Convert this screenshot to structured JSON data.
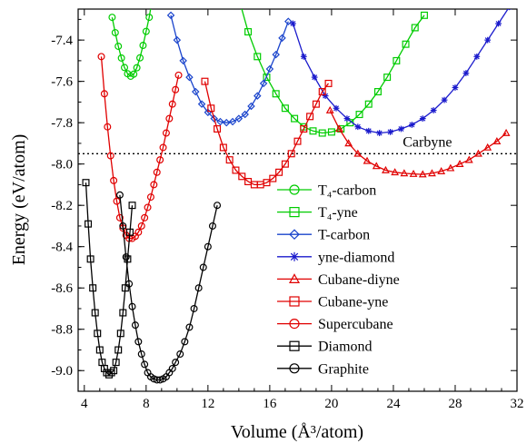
{
  "chart_data": {
    "type": "line",
    "xlabel": "Volume (Å³/atom)",
    "ylabel": "Energy (eV/atom)",
    "xlim": [
      3.6,
      32
    ],
    "ylim": [
      -9.1,
      -7.25
    ],
    "xticks": [
      4,
      8,
      12,
      16,
      20,
      24,
      28,
      32
    ],
    "yticks": [
      -7.4,
      -7.6,
      -7.8,
      -8.0,
      -8.2,
      -8.4,
      -8.6,
      -8.8,
      -9.0
    ],
    "grid": false,
    "legend_position": "bottom-right",
    "reference_line": {
      "label": "Carbyne",
      "y": -7.95,
      "style": "dotted"
    },
    "series": [
      {
        "name": "T₄-carbon",
        "color": "#00cc00",
        "marker": "circle",
        "x": [
          5.8,
          6.0,
          6.2,
          6.4,
          6.6,
          6.8,
          7.0,
          7.2,
          7.4,
          7.6,
          7.8,
          8.0,
          8.2,
          8.4,
          8.6
        ],
        "y": [
          -7.29,
          -7.364,
          -7.43,
          -7.487,
          -7.533,
          -7.563,
          -7.575,
          -7.565,
          -7.534,
          -7.486,
          -7.426,
          -7.358,
          -7.29,
          -7.2,
          -7.1
        ]
      },
      {
        "name": "T₄-yne",
        "color": "#00cc00",
        "marker": "square",
        "x": [
          14.0,
          14.6,
          15.2,
          15.8,
          16.4,
          17.0,
          17.6,
          18.2,
          18.8,
          19.4,
          20.0,
          20.6,
          21.2,
          21.8,
          22.4,
          23.0,
          23.6,
          24.2,
          24.8,
          25.4,
          26.0
        ],
        "y": [
          -7.2,
          -7.36,
          -7.48,
          -7.58,
          -7.66,
          -7.73,
          -7.78,
          -7.82,
          -7.84,
          -7.85,
          -7.845,
          -7.83,
          -7.8,
          -7.76,
          -7.71,
          -7.65,
          -7.58,
          -7.5,
          -7.42,
          -7.34,
          -7.28
        ]
      },
      {
        "name": "T-carbon",
        "color": "#1a44cc",
        "marker": "diamond",
        "x": [
          9.6,
          10.0,
          10.4,
          10.8,
          11.2,
          11.6,
          12.0,
          12.4,
          12.8,
          13.2,
          13.6,
          14.0,
          14.4,
          14.8,
          15.2,
          15.6,
          16.0,
          16.4,
          16.8,
          17.2
        ],
        "y": [
          -7.28,
          -7.4,
          -7.5,
          -7.58,
          -7.65,
          -7.71,
          -7.75,
          -7.78,
          -7.795,
          -7.8,
          -7.795,
          -7.78,
          -7.76,
          -7.72,
          -7.67,
          -7.61,
          -7.54,
          -7.47,
          -7.39,
          -7.31
        ]
      },
      {
        "name": "yne-diamond",
        "color": "#1a1acc",
        "marker": "star",
        "x": [
          17.5,
          18.2,
          18.9,
          19.6,
          20.3,
          21.0,
          21.7,
          22.4,
          23.1,
          23.8,
          24.5,
          25.2,
          25.9,
          26.6,
          27.3,
          28.0,
          28.7,
          29.4,
          30.1,
          30.8,
          31.5
        ],
        "y": [
          -7.32,
          -7.48,
          -7.58,
          -7.67,
          -7.73,
          -7.78,
          -7.82,
          -7.84,
          -7.85,
          -7.845,
          -7.83,
          -7.81,
          -7.78,
          -7.74,
          -7.69,
          -7.63,
          -7.56,
          -7.48,
          -7.4,
          -7.32,
          -7.24
        ]
      },
      {
        "name": "Cubane-diyne",
        "color": "#e00000",
        "marker": "triangle",
        "x": [
          19.9,
          20.5,
          21.1,
          21.7,
          22.3,
          22.9,
          23.5,
          24.1,
          24.7,
          25.3,
          25.9,
          26.5,
          27.1,
          27.7,
          28.3,
          28.9,
          29.5,
          30.1,
          30.7,
          31.3
        ],
        "y": [
          -7.74,
          -7.83,
          -7.9,
          -7.95,
          -7.985,
          -8.01,
          -8.03,
          -8.04,
          -8.045,
          -8.048,
          -8.05,
          -8.045,
          -8.035,
          -8.02,
          -8.0,
          -7.98,
          -7.95,
          -7.92,
          -7.89,
          -7.85
        ]
      },
      {
        "name": "Cubane-yne",
        "color": "#e00000",
        "marker": "square",
        "x": [
          11.8,
          12.2,
          12.6,
          13.0,
          13.4,
          13.8,
          14.2,
          14.6,
          15.0,
          15.4,
          15.8,
          16.2,
          16.6,
          17.0,
          17.4,
          17.8,
          18.2,
          18.6,
          19.0,
          19.4,
          19.8
        ],
        "y": [
          -7.6,
          -7.73,
          -7.83,
          -7.92,
          -7.98,
          -8.03,
          -8.06,
          -8.085,
          -8.1,
          -8.1,
          -8.09,
          -8.07,
          -8.04,
          -8.0,
          -7.95,
          -7.89,
          -7.83,
          -7.77,
          -7.71,
          -7.65,
          -7.61
        ]
      },
      {
        "name": "Supercubane",
        "color": "#e00000",
        "marker": "circle",
        "x": [
          5.1,
          5.3,
          5.5,
          5.7,
          5.9,
          6.1,
          6.3,
          6.5,
          6.7,
          6.9,
          7.1,
          7.3,
          7.5,
          7.7,
          7.9,
          8.1,
          8.3,
          8.5,
          8.7,
          8.9,
          9.1,
          9.3,
          9.5,
          9.7,
          9.9,
          10.1
        ],
        "y": [
          -7.48,
          -7.66,
          -7.82,
          -7.96,
          -8.08,
          -8.18,
          -8.26,
          -8.31,
          -8.345,
          -8.36,
          -8.36,
          -8.35,
          -8.33,
          -8.3,
          -8.26,
          -8.21,
          -8.16,
          -8.1,
          -8.04,
          -7.98,
          -7.92,
          -7.85,
          -7.78,
          -7.71,
          -7.64,
          -7.57
        ]
      },
      {
        "name": "Diamond",
        "color": "#000000",
        "marker": "square",
        "x": [
          4.1,
          4.25,
          4.4,
          4.55,
          4.7,
          4.85,
          5.0,
          5.15,
          5.3,
          5.45,
          5.6,
          5.75,
          5.9,
          6.05,
          6.2,
          6.35,
          6.5,
          6.65,
          6.8,
          6.95,
          7.1
        ],
        "y": [
          -8.09,
          -8.29,
          -8.46,
          -8.6,
          -8.72,
          -8.82,
          -8.9,
          -8.96,
          -8.99,
          -9.01,
          -9.02,
          -9.01,
          -9.0,
          -8.96,
          -8.9,
          -8.82,
          -8.72,
          -8.6,
          -8.46,
          -8.33,
          -8.2
        ]
      },
      {
        "name": "Graphite",
        "color": "#000000",
        "marker": "circle",
        "x": [
          6.3,
          6.5,
          6.7,
          6.9,
          7.1,
          7.3,
          7.5,
          7.7,
          7.9,
          8.1,
          8.3,
          8.5,
          8.7,
          8.9,
          9.1,
          9.3,
          9.5,
          9.7,
          9.9,
          10.2,
          10.5,
          10.8,
          11.1,
          11.4,
          11.7,
          12.0,
          12.3,
          12.6
        ],
        "y": [
          -8.15,
          -8.3,
          -8.45,
          -8.58,
          -8.69,
          -8.78,
          -8.86,
          -8.92,
          -8.97,
          -9.01,
          -9.03,
          -9.04,
          -9.045,
          -9.045,
          -9.04,
          -9.03,
          -9.01,
          -8.99,
          -8.96,
          -8.92,
          -8.86,
          -8.79,
          -8.7,
          -8.6,
          -8.5,
          -8.4,
          -8.3,
          -8.2
        ]
      }
    ]
  }
}
